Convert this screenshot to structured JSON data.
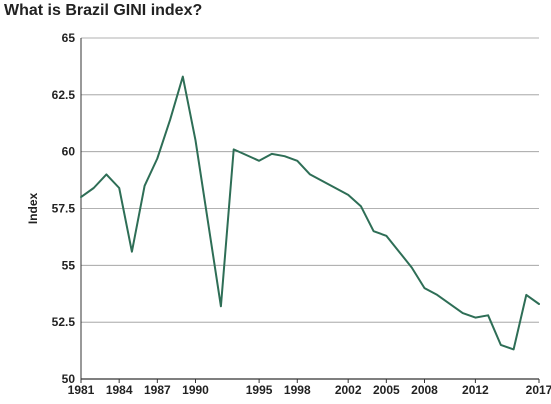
{
  "chart_data": {
    "type": "line",
    "title": "What is Brazil GINI index?",
    "xlabel": "",
    "ylabel": "Index",
    "xlim": [
      1981,
      2017
    ],
    "ylim": [
      50,
      65
    ],
    "grid": "horizontal",
    "legend": "none",
    "yticks": [
      50,
      52.5,
      55,
      57.5,
      60,
      62.5,
      65
    ],
    "ytick_labels": [
      "50",
      "52.5",
      "55",
      "57.5",
      "60",
      "62.5",
      "65"
    ],
    "xticks": [
      1981,
      1984,
      1987,
      1990,
      1995,
      1998,
      2002,
      2005,
      2008,
      2012,
      2017
    ],
    "xtick_labels": [
      "1981",
      "1984",
      "1987",
      "1990",
      "1995",
      "1998",
      "2002",
      "2005",
      "2008",
      "2012",
      "2017"
    ],
    "series": [
      {
        "color": "#2e6e56",
        "x": [
          1981,
          1982,
          1983,
          1984,
          1985,
          1986,
          1987,
          1988,
          1989,
          1990,
          1992,
          1993,
          1995,
          1996,
          1997,
          1998,
          1999,
          2001,
          2002,
          2003,
          2004,
          2005,
          2006,
          2007,
          2008,
          2009,
          2011,
          2012,
          2013,
          2014,
          2015,
          2016,
          2017
        ],
        "values": [
          58.0,
          58.4,
          59.0,
          58.4,
          55.6,
          58.5,
          59.7,
          61.4,
          63.3,
          60.5,
          53.2,
          60.1,
          59.6,
          59.9,
          59.8,
          59.6,
          59.0,
          58.4,
          58.1,
          57.6,
          56.5,
          56.3,
          55.6,
          54.9,
          54.0,
          53.7,
          52.9,
          52.7,
          52.8,
          51.5,
          51.3,
          53.7,
          53.3
        ]
      }
    ]
  }
}
